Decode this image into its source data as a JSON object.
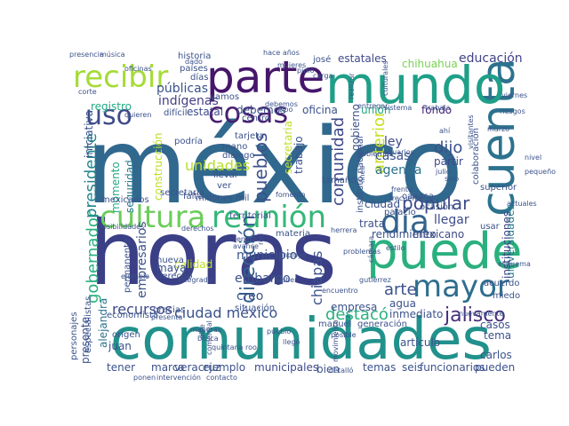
{
  "cloud": {
    "words": [
      {
        "text": "méxico",
        "color": "#31688e"
      },
      {
        "text": "horas",
        "color": "#3b3f86"
      },
      {
        "text": "comunidades",
        "color": "#21918c"
      },
      {
        "text": "puede",
        "color": "#2ab07f"
      },
      {
        "text": "cuenta",
        "color": "#2c728e"
      },
      {
        "text": "mundo",
        "color": "#1f9f88"
      },
      {
        "text": "parte",
        "color": "#46166b"
      },
      {
        "text": "recibir",
        "color": "#a5db36"
      },
      {
        "text": "cosas",
        "color": "#481f70"
      },
      {
        "text": "uso",
        "color": "#3e4a89"
      },
      {
        "text": "cultura",
        "color": "#6ccd5a"
      },
      {
        "text": "reunión",
        "color": "#35b779"
      },
      {
        "text": "día",
        "color": "#33638d"
      },
      {
        "text": "mayor",
        "color": "#2e6e8e"
      },
      {
        "text": "gobernador",
        "color": "#2ab07f"
      },
      {
        "text": "presidente",
        "color": "#25858e"
      },
      {
        "text": "pueblos",
        "color": "#3b528b"
      },
      {
        "text": "comunidad",
        "color": "#3e4989"
      },
      {
        "text": "anterior",
        "color": "#c8e020"
      },
      {
        "text": "dirección",
        "color": "#355f8d"
      },
      {
        "text": "chiapas",
        "color": "#3b528b"
      },
      {
        "text": "popular",
        "color": "#3e4a89"
      },
      {
        "text": "arte",
        "color": "#3b528b"
      },
      {
        "text": "jalisco",
        "color": "#472d7b"
      },
      {
        "text": "destacó",
        "color": "#2ab07f"
      },
      {
        "text": "ciudad méxico",
        "color": "#3b528b"
      },
      {
        "text": "recursos",
        "color": "#3e4989"
      },
      {
        "text": "educación",
        "color": "#414487"
      },
      {
        "text": "estatales",
        "color": "#3e4a89"
      },
      {
        "text": "chihuahua",
        "color": "#7ad151"
      },
      {
        "text": "universidades",
        "color": "#277f8e"
      },
      {
        "text": "instituciones",
        "color": "#3f4788"
      },
      {
        "text": "públicas",
        "color": "#3b528b"
      },
      {
        "text": "indígenas",
        "color": "#433e85"
      },
      {
        "text": "registro",
        "color": "#22a884"
      },
      {
        "text": "estatal",
        "color": "#3e4989"
      },
      {
        "text": "debemos",
        "color": "#3b528b"
      },
      {
        "text": "oficina",
        "color": "#3b528b"
      },
      {
        "text": "unión",
        "color": "#22a884"
      },
      {
        "text": "fondo",
        "color": "#482576"
      },
      {
        "text": "unidades",
        "color": "#b5de2b"
      },
      {
        "text": "seguridad",
        "color": "#2a788e"
      },
      {
        "text": "momento",
        "color": "#22a884"
      },
      {
        "text": "iniciativa",
        "color": "#3b528b"
      },
      {
        "text": "ley",
        "color": "#3e4989"
      },
      {
        "text": "dijo",
        "color": "#3b528b"
      },
      {
        "text": "casas",
        "color": "#3b528b"
      },
      {
        "text": "agenda",
        "color": "#2c728e"
      },
      {
        "text": "partir",
        "color": "#3e4989"
      },
      {
        "text": "llegar",
        "color": "#3e4a89"
      },
      {
        "text": "trabajo",
        "color": "#3b528b"
      },
      {
        "text": "secretaria",
        "color": "#bddf26"
      },
      {
        "text": "construcción",
        "color": "#bddf26"
      },
      {
        "text": "municipio",
        "color": "#3b528b"
      },
      {
        "text": "embargo",
        "color": "#3b528b"
      },
      {
        "text": "calidad",
        "color": "#bddf26"
      },
      {
        "text": "creo",
        "color": "#3b528b"
      },
      {
        "text": "maya",
        "color": "#3b528b"
      },
      {
        "text": "empresarios",
        "color": "#3b528b"
      },
      {
        "text": "alejandra",
        "color": "#2c728e"
      },
      {
        "text": "mexicano",
        "color": "#3e4989"
      },
      {
        "text": "rendimiento",
        "color": "#3b528b"
      },
      {
        "text": "agua",
        "color": "#3b528b"
      },
      {
        "text": "inmediato",
        "color": "#3b528b"
      },
      {
        "text": "casos",
        "color": "#3b528b"
      },
      {
        "text": "tema",
        "color": "#3b528b"
      },
      {
        "text": "carlos",
        "color": "#3b528b"
      },
      {
        "text": "artículo",
        "color": "#3b528b"
      },
      {
        "text": "pueden",
        "color": "#3b528b"
      },
      {
        "text": "funcionarios",
        "color": "#3b528b"
      },
      {
        "text": "seis",
        "color": "#3b528b"
      },
      {
        "text": "temas",
        "color": "#3b528b"
      },
      {
        "text": "bien",
        "color": "#3b528b"
      },
      {
        "text": "municipales",
        "color": "#3e4989"
      },
      {
        "text": "ejemplo",
        "color": "#3b528b"
      },
      {
        "text": "veracruz",
        "color": "#3b528b"
      },
      {
        "text": "marca",
        "color": "#3b528b"
      },
      {
        "text": "tener",
        "color": "#3b528b"
      },
      {
        "text": "juan",
        "color": "#3b528b"
      },
      {
        "text": "presente",
        "color": "#3b528b"
      },
      {
        "text": "gracias",
        "color": "#3b528b"
      },
      {
        "text": "empresa",
        "color": "#3b528b"
      },
      {
        "text": "situación",
        "color": "#3b528b"
      },
      {
        "text": "manuel",
        "color": "#3b528b"
      },
      {
        "text": "generación",
        "color": "#3b528b"
      },
      {
        "text": "tamaño",
        "color": "#3b528b"
      },
      {
        "text": "ocasión",
        "color": "#3b528b"
      },
      {
        "text": "superior",
        "color": "#3b528b"
      },
      {
        "text": "usar",
        "color": "#3b528b"
      },
      {
        "text": "acuerdo",
        "color": "#3b528b"
      },
      {
        "text": "miedo",
        "color": "#3b528b"
      },
      {
        "text": "territorial",
        "color": "#3b528b"
      },
      {
        "text": "materia",
        "color": "#3b528b"
      },
      {
        "text": "secretaría",
        "color": "#3b528b"
      },
      {
        "text": "millones mil",
        "color": "#3b528b"
      },
      {
        "text": "mexicanos",
        "color": "#3b528b"
      },
      {
        "text": "falta",
        "color": "#3b528b"
      },
      {
        "text": "ver",
        "color": "#3b528b"
      },
      {
        "text": "llevar",
        "color": "#3b528b"
      },
      {
        "text": "tarjeta",
        "color": "#3b528b"
      },
      {
        "text": "mano",
        "color": "#3b528b"
      },
      {
        "text": "diálogo",
        "color": "#3b528b"
      },
      {
        "text": "podría",
        "color": "#3b528b"
      },
      {
        "text": "centro",
        "color": "#3b528b"
      },
      {
        "text": "josé",
        "color": "#3b528b"
      },
      {
        "text": "vamos",
        "color": "#3b528b"
      },
      {
        "text": "oaxaca",
        "color": "#3b528b"
      },
      {
        "text": "palacio",
        "color": "#3b528b"
      },
      {
        "text": "instituto nacional",
        "color": "#3b528b"
      },
      {
        "text": "colaboración",
        "color": "#3b528b"
      },
      {
        "text": "origen",
        "color": "#3b528b"
      },
      {
        "text": "economista",
        "color": "#3b528b"
      },
      {
        "text": "nueva",
        "color": "#3b528b"
      },
      {
        "text": "derecho",
        "color": "#3b528b"
      },
      {
        "text": "permanente",
        "color": "#3b528b"
      },
      {
        "text": "países",
        "color": "#3b528b"
      },
      {
        "text": "historia",
        "color": "#3b528b"
      },
      {
        "text": "carga",
        "color": "#3b528b"
      },
      {
        "text": "mujeres",
        "color": "#3b528b"
      },
      {
        "text": "presencia",
        "color": "#3b528b"
      },
      {
        "text": "música",
        "color": "#3b528b"
      },
      {
        "text": "hace años",
        "color": "#3b528b"
      },
      {
        "text": "pidió",
        "color": "#3b528b"
      },
      {
        "text": "días",
        "color": "#3b528b"
      },
      {
        "text": "difícil",
        "color": "#3b528b"
      },
      {
        "text": "tipo",
        "color": "#3b528b"
      },
      {
        "text": "entregar",
        "color": "#3b528b"
      },
      {
        "text": "sistema",
        "color": "#3b528b"
      },
      {
        "text": "trabaja",
        "color": "#3b528b"
      },
      {
        "text": "gobiernos",
        "color": "#3b528b"
      },
      {
        "text": "usuarios",
        "color": "#3b528b"
      },
      {
        "text": "julio",
        "color": "#3b528b"
      },
      {
        "text": "solo",
        "color": "#3b528b"
      },
      {
        "text": "fomento",
        "color": "#3b528b"
      },
      {
        "text": "posibilidades",
        "color": "#3b528b"
      },
      {
        "text": "derechos",
        "color": "#3b528b"
      },
      {
        "text": "herrera",
        "color": "#3b528b"
      },
      {
        "text": "cámara",
        "color": "#3b528b"
      },
      {
        "text": "incluye",
        "color": "#3b528b"
      },
      {
        "text": "saber",
        "color": "#3b528b"
      },
      {
        "text": "encuentro",
        "color": "#3b528b"
      },
      {
        "text": "problemas",
        "color": "#3b528b"
      },
      {
        "text": "ejemplo",
        "color": "#3b528b"
      },
      {
        "text": "presenta",
        "color": "#3b528b"
      },
      {
        "text": "especialistas",
        "color": "#3b528b"
      },
      {
        "text": "personajes",
        "color": "#3b528b"
      },
      {
        "text": "contacto",
        "color": "#3b528b"
      },
      {
        "text": "comercial",
        "color": "#3b528b"
      },
      {
        "text": "dice",
        "color": "#3b528b"
      },
      {
        "text": "pueblo",
        "color": "#3b528b"
      },
      {
        "text": "llegó",
        "color": "#3b528b"
      },
      {
        "text": "movimiento",
        "color": "#3b528b"
      },
      {
        "text": "detalló",
        "color": "#3b528b"
      },
      {
        "text": "posible",
        "color": "#3b528b"
      },
      {
        "text": "nuevamente",
        "color": "#3b528b"
      },
      {
        "text": "ponen",
        "color": "#3b528b"
      },
      {
        "text": "intervención",
        "color": "#3b528b"
      },
      {
        "text": "visitantes",
        "color": "#3b528b"
      },
      {
        "text": "quieren",
        "color": "#3b528b"
      },
      {
        "text": "dado",
        "color": "#3b528b"
      },
      {
        "text": "corte",
        "color": "#3b528b"
      },
      {
        "text": "oficinas",
        "color": "#3b528b"
      },
      {
        "text": "gutiérrez",
        "color": "#3b528b"
      },
      {
        "text": "línea",
        "color": "#3b528b"
      },
      {
        "text": "frecuente",
        "color": "#3b528b"
      },
      {
        "text": "nivel",
        "color": "#3b528b"
      },
      {
        "text": "pequeño",
        "color": "#3b528b"
      },
      {
        "text": "esquema",
        "color": "#3b528b"
      },
      {
        "text": "marzo",
        "color": "#3b528b"
      },
      {
        "text": "riesgos",
        "color": "#3b528b"
      },
      {
        "text": "viernes",
        "color": "#3b528b"
      },
      {
        "text": "debemos",
        "color": "#3b528b"
      },
      {
        "text": "estilo",
        "color": "#3b528b"
      },
      {
        "text": "enero",
        "color": "#3b528b"
      },
      {
        "text": "avance",
        "color": "#3b528b"
      },
      {
        "text": "actuales",
        "color": "#3b528b"
      },
      {
        "text": "frente",
        "color": "#3b528b"
      },
      {
        "text": "culturales",
        "color": "#3b528b"
      },
      {
        "text": "realizar",
        "color": "#3b528b"
      },
      {
        "text": "integrado",
        "color": "#3b528b"
      },
      {
        "text": "maneras",
        "color": "#3b528b"
      },
      {
        "text": "busca",
        "color": "#3b528b"
      },
      {
        "text": "quintana roo",
        "color": "#3b528b"
      },
      {
        "text": "red",
        "color": "#3b528b"
      },
      {
        "text": "ahí",
        "color": "#3b528b"
      },
      {
        "text": "ciudad",
        "color": "#3b528b"
      },
      {
        "text": "gobierno",
        "color": "#3b528b"
      },
      {
        "text": "trata",
        "color": "#3b528b"
      }
    ]
  }
}
